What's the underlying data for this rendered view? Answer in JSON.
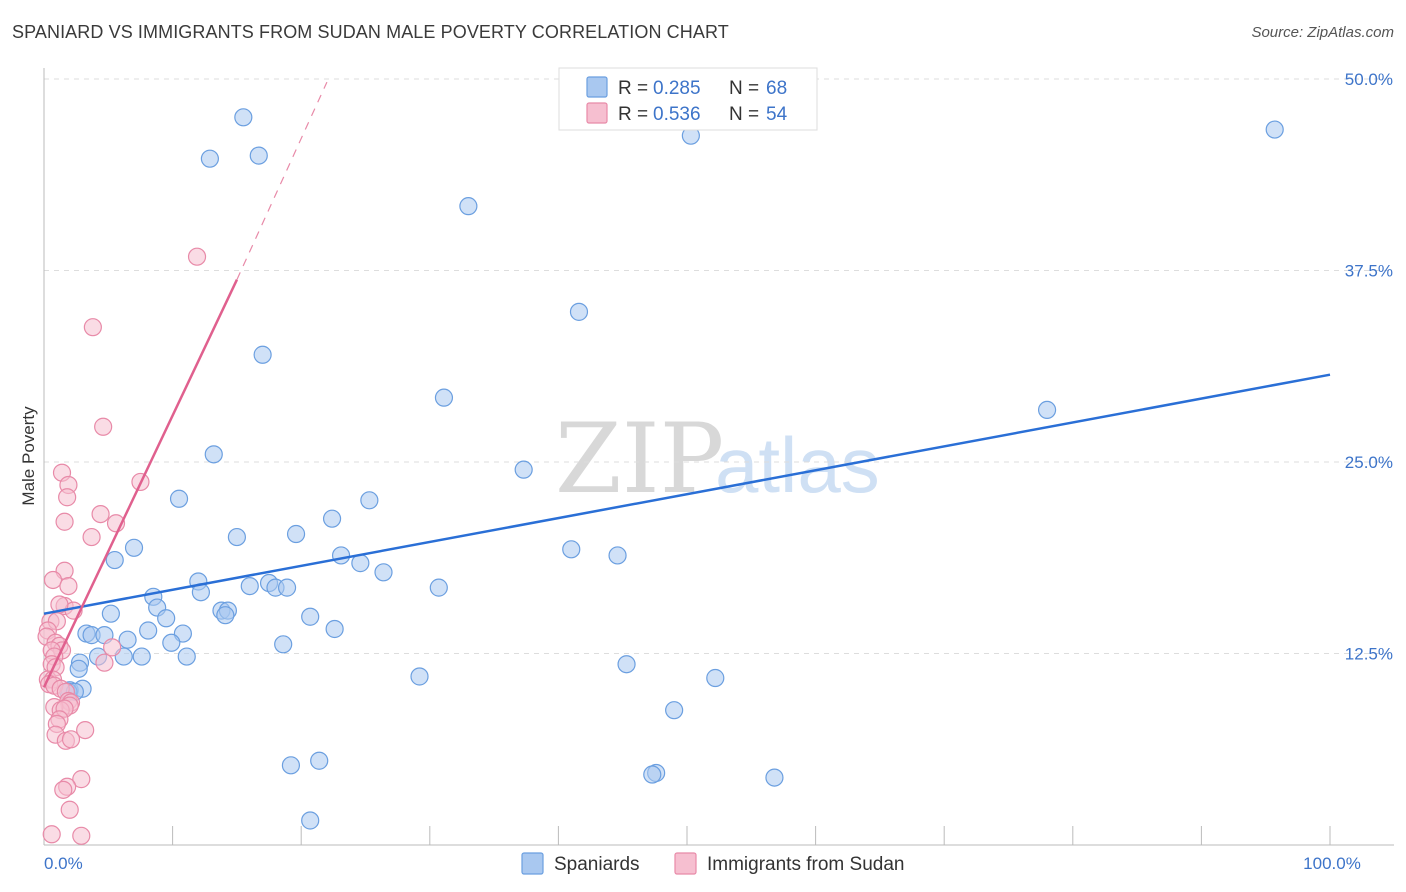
{
  "title": "SPANIARD VS IMMIGRANTS FROM SUDAN MALE POVERTY CORRELATION CHART",
  "source": "Source: ZipAtlas.com",
  "watermark": {
    "zip": "ZIP",
    "atlas": "atlas"
  },
  "colors": {
    "blue_fill": "#a9c8f0",
    "blue_stroke": "#6b9fe0",
    "blue_line": "#2a6fd6",
    "pink_fill": "#f6bfd0",
    "pink_stroke": "#e88aa8",
    "pink_line": "#e0608e",
    "value_text": "#3d74c9",
    "grid": "#dddddd"
  },
  "legend": {
    "series": [
      {
        "r_label": "R =",
        "r_value": "0.285",
        "n_label": "N =",
        "n_value": "68"
      },
      {
        "r_label": "R =",
        "r_value": "0.536",
        "n_label": "N =",
        "n_value": "54"
      }
    ]
  },
  "bottom_legend": [
    "Spaniards",
    "Immigrants from Sudan"
  ],
  "chart_data": {
    "type": "scatter",
    "xlabel": "",
    "ylabel": "Male Poverty",
    "xlim": [
      0,
      100
    ],
    "ylim": [
      0,
      50
    ],
    "x_tick_labels": [
      {
        "value": 0,
        "label": "0.0%"
      },
      {
        "value": 100,
        "label": "100.0%"
      }
    ],
    "y_tick_labels": [
      {
        "value": 12.5,
        "label": "12.5%"
      },
      {
        "value": 25,
        "label": "25.0%"
      },
      {
        "value": 37.5,
        "label": "37.5%"
      },
      {
        "value": 50,
        "label": "50.0%"
      }
    ],
    "grid": true,
    "legend_position": "top-center",
    "series": [
      {
        "name": "Spaniards",
        "R": 0.285,
        "N": 68,
        "trend": {
          "x": [
            0,
            100
          ],
          "y": [
            15.1,
            30.7
          ]
        },
        "points": [
          [
            15.5,
            47.5
          ],
          [
            16.7,
            45.0
          ],
          [
            12.9,
            44.8
          ],
          [
            33.0,
            41.7
          ],
          [
            50.3,
            46.3
          ],
          [
            95.7,
            46.7
          ],
          [
            41.6,
            34.8
          ],
          [
            17.0,
            32.0
          ],
          [
            31.1,
            29.2
          ],
          [
            78.0,
            28.4
          ],
          [
            13.2,
            25.5
          ],
          [
            37.3,
            24.5
          ],
          [
            10.5,
            22.6
          ],
          [
            25.3,
            22.5
          ],
          [
            22.4,
            21.3
          ],
          [
            15.0,
            20.1
          ],
          [
            19.6,
            20.3
          ],
          [
            7.0,
            19.4
          ],
          [
            41.0,
            19.3
          ],
          [
            44.6,
            18.9
          ],
          [
            5.5,
            18.6
          ],
          [
            23.1,
            18.9
          ],
          [
            24.6,
            18.4
          ],
          [
            26.4,
            17.8
          ],
          [
            12.0,
            17.2
          ],
          [
            16.0,
            16.9
          ],
          [
            17.5,
            17.1
          ],
          [
            18.0,
            16.8
          ],
          [
            18.9,
            16.8
          ],
          [
            30.7,
            16.8
          ],
          [
            12.2,
            16.5
          ],
          [
            8.5,
            16.2
          ],
          [
            8.8,
            15.5
          ],
          [
            13.8,
            15.3
          ],
          [
            14.3,
            15.3
          ],
          [
            14.1,
            15.0
          ],
          [
            5.2,
            15.1
          ],
          [
            9.5,
            14.8
          ],
          [
            20.7,
            14.9
          ],
          [
            8.1,
            14.0
          ],
          [
            22.6,
            14.1
          ],
          [
            3.3,
            13.8
          ],
          [
            3.7,
            13.7
          ],
          [
            4.7,
            13.7
          ],
          [
            10.8,
            13.8
          ],
          [
            6.5,
            13.4
          ],
          [
            9.9,
            13.2
          ],
          [
            18.6,
            13.1
          ],
          [
            4.2,
            12.3
          ],
          [
            6.2,
            12.3
          ],
          [
            7.6,
            12.3
          ],
          [
            11.1,
            12.3
          ],
          [
            2.8,
            11.9
          ],
          [
            45.3,
            11.8
          ],
          [
            2.7,
            11.5
          ],
          [
            29.2,
            11.0
          ],
          [
            52.2,
            10.9
          ],
          [
            2.0,
            10.1
          ],
          [
            3.0,
            10.2
          ],
          [
            1.9,
            10.0
          ],
          [
            49.0,
            8.8
          ],
          [
            47.6,
            4.7
          ],
          [
            47.3,
            4.6
          ],
          [
            56.8,
            4.4
          ],
          [
            21.4,
            5.5
          ],
          [
            19.2,
            5.2
          ],
          [
            20.7,
            1.6
          ],
          [
            2.4,
            10.0
          ]
        ]
      },
      {
        "name": "Immigrants from Sudan",
        "R": 0.536,
        "N": 54,
        "trend": {
          "x": [
            0,
            15
          ],
          "y": [
            10.3,
            36.9
          ]
        },
        "trend_extension": {
          "x": [
            15,
            22
          ],
          "y": [
            36.9,
            49.8
          ]
        },
        "points": [
          [
            11.9,
            38.4
          ],
          [
            3.8,
            33.8
          ],
          [
            4.6,
            27.3
          ],
          [
            1.4,
            24.3
          ],
          [
            1.9,
            23.5
          ],
          [
            1.8,
            22.7
          ],
          [
            4.4,
            21.6
          ],
          [
            1.6,
            21.1
          ],
          [
            5.6,
            21.0
          ],
          [
            3.7,
            20.1
          ],
          [
            7.5,
            23.7
          ],
          [
            1.6,
            17.9
          ],
          [
            0.7,
            17.3
          ],
          [
            1.9,
            16.9
          ],
          [
            1.6,
            15.6
          ],
          [
            2.3,
            15.3
          ],
          [
            1.2,
            15.7
          ],
          [
            0.5,
            14.6
          ],
          [
            1.0,
            14.6
          ],
          [
            0.3,
            14.0
          ],
          [
            0.2,
            13.6
          ],
          [
            0.9,
            13.2
          ],
          [
            1.2,
            13.0
          ],
          [
            1.4,
            12.7
          ],
          [
            0.6,
            12.7
          ],
          [
            0.8,
            12.3
          ],
          [
            5.3,
            12.9
          ],
          [
            0.6,
            11.8
          ],
          [
            0.9,
            11.6
          ],
          [
            4.7,
            11.9
          ],
          [
            0.3,
            10.8
          ],
          [
            0.7,
            10.8
          ],
          [
            0.4,
            10.5
          ],
          [
            0.8,
            10.4
          ],
          [
            1.3,
            10.2
          ],
          [
            1.7,
            10.0
          ],
          [
            1.9,
            9.4
          ],
          [
            2.1,
            9.3
          ],
          [
            2.0,
            9.1
          ],
          [
            0.8,
            9.0
          ],
          [
            1.3,
            8.8
          ],
          [
            1.6,
            8.9
          ],
          [
            1.2,
            8.2
          ],
          [
            1.0,
            7.9
          ],
          [
            3.2,
            7.5
          ],
          [
            0.9,
            7.2
          ],
          [
            1.7,
            6.8
          ],
          [
            2.1,
            6.9
          ],
          [
            2.9,
            4.3
          ],
          [
            1.8,
            3.8
          ],
          [
            1.5,
            3.6
          ],
          [
            2.0,
            2.3
          ],
          [
            2.9,
            0.6
          ],
          [
            0.6,
            0.7
          ]
        ]
      }
    ]
  }
}
